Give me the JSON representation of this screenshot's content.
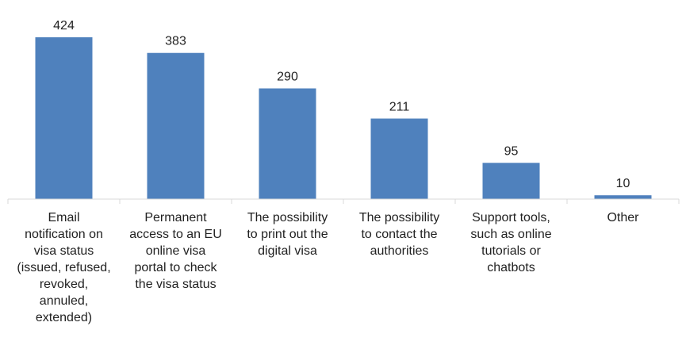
{
  "chart_data": {
    "type": "bar",
    "categories": [
      "Email\nnotification on\nvisa status\n(issued, refused,\nrevoked,\nannuled,\nextended)",
      "Permanent\naccess to an EU\nonline visa\nportal to check\nthe visa status",
      "The possibility\nto print out the\ndigital visa",
      "The possibility\nto contact the\nauthorities",
      "Support tools,\nsuch as online\ntutorials or\nchatbots",
      "Other"
    ],
    "values": [
      424,
      383,
      290,
      211,
      95,
      10
    ],
    "data_labels": [
      "424",
      "383",
      "290",
      "211",
      "95",
      "10"
    ],
    "ylim": [
      0,
      424
    ],
    "grid": false,
    "legend": "none",
    "bar_color": "#4f81bd",
    "axis_color": "#d9d9d9"
  }
}
